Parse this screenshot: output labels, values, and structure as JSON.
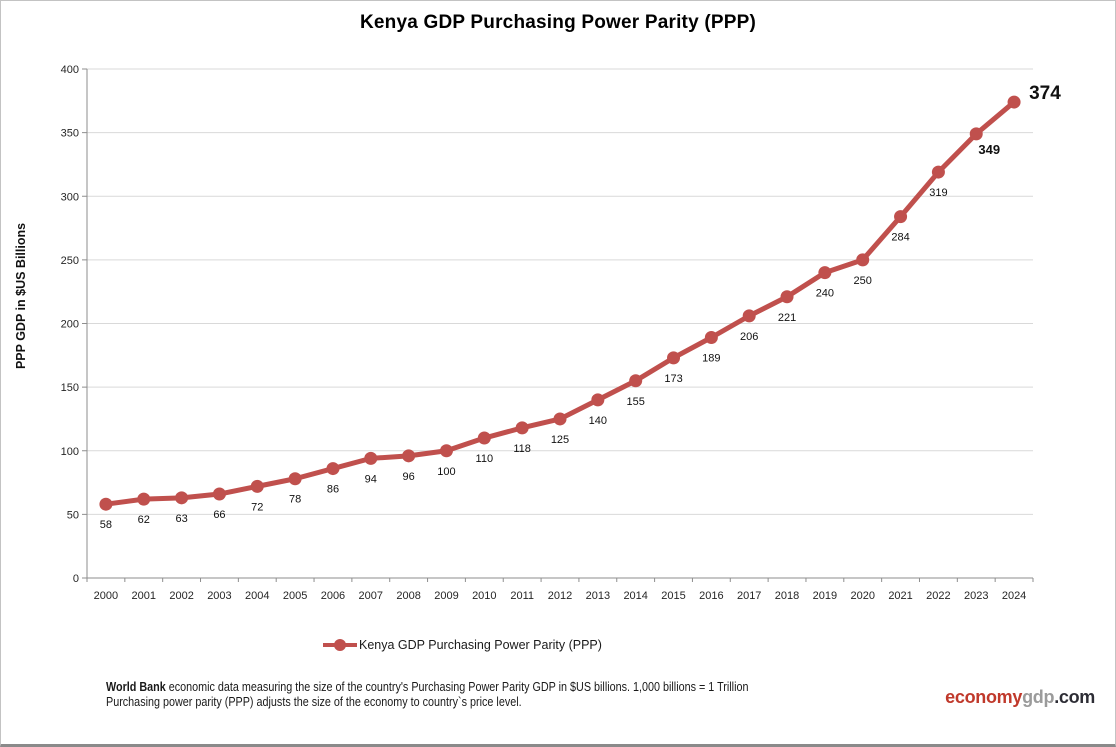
{
  "title": "Kenya GDP Purchasing Power Parity (PPP)",
  "chart_data": {
    "type": "line",
    "title": "Kenya GDP Purchasing Power Parity (PPP)",
    "x": [
      2000,
      2001,
      2002,
      2003,
      2004,
      2005,
      2006,
      2007,
      2008,
      2009,
      2010,
      2011,
      2012,
      2013,
      2014,
      2015,
      2016,
      2017,
      2018,
      2019,
      2020,
      2021,
      2022,
      2023,
      2024
    ],
    "series": [
      {
        "name": "Kenya GDP Purchasing Power Parity (PPP)",
        "values": [
          58,
          62,
          63,
          66,
          72,
          78,
          86,
          94,
          96,
          100,
          110,
          118,
          125,
          140,
          155,
          173,
          189,
          206,
          221,
          240,
          250,
          284,
          319,
          349,
          374
        ]
      }
    ],
    "xlabel": "",
    "ylabel": "PPP GDP in $US Billions",
    "ylim": [
      0,
      400
    ],
    "yticks": [
      0,
      50,
      100,
      150,
      200,
      250,
      300,
      350,
      400
    ],
    "grid": true,
    "legend_position": "bottom",
    "data_labels": true,
    "line_color": "#C0504D",
    "gridline_color": "#d9d9d9",
    "axis_color": "#8e8e8e",
    "label_color": "#111111"
  },
  "legend": {
    "label": "Kenya GDP Purchasing Power Parity (PPP)"
  },
  "footer": {
    "bold": "World Bank",
    "line1_rest": " economic data  measuring the size of the country's Purchasing Power Parity GDP in $US billions. 1,000 billions = 1 Trillion",
    "line2": "Purchasing power parity (PPP) adjusts the size of the economy to country`s price level."
  },
  "logo": {
    "part1": "economy",
    "part2": "gdp",
    "part3": ".com",
    "colors": {
      "part1": "#c0392b",
      "part2": "#9b9b9b",
      "part3": "#2d2d35"
    }
  }
}
